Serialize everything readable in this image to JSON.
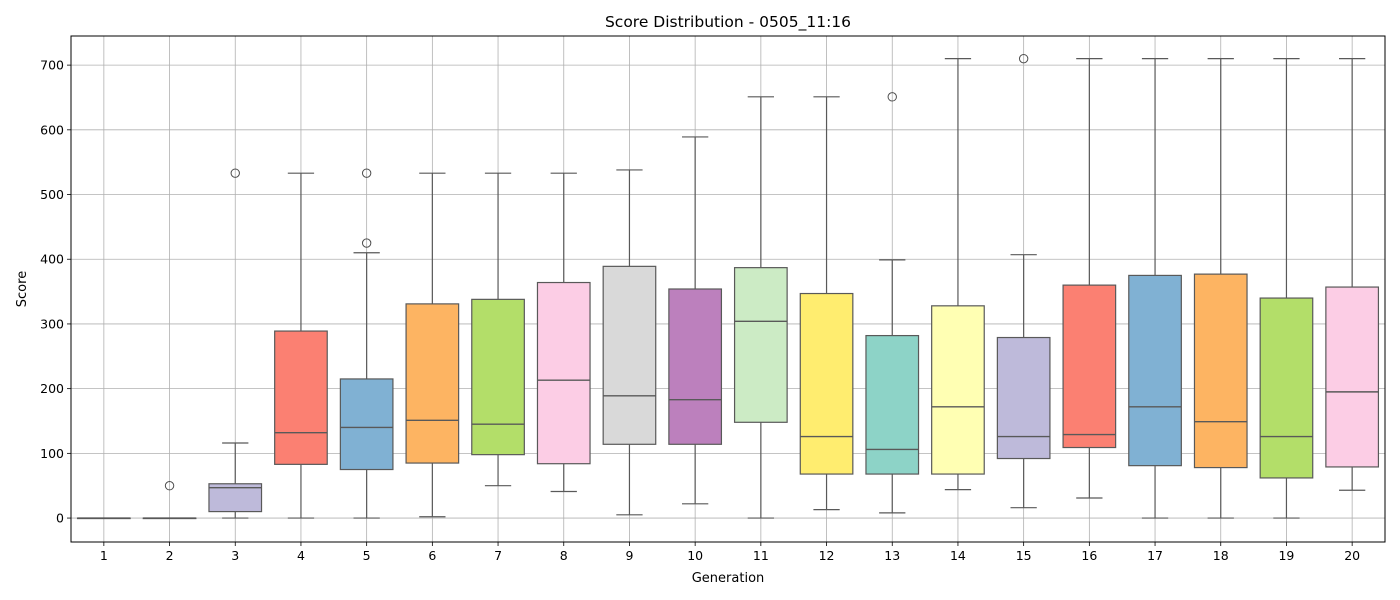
{
  "chart_data": {
    "type": "box",
    "title": "Score Distribution - 0505_11:16",
    "xlabel": "Generation",
    "ylabel": "Score",
    "ylim": [
      -37,
      745
    ],
    "yticks": [
      0,
      100,
      200,
      300,
      400,
      500,
      600,
      700
    ],
    "grid": true,
    "categories": [
      "1",
      "2",
      "3",
      "4",
      "5",
      "6",
      "7",
      "8",
      "9",
      "10",
      "11",
      "12",
      "13",
      "14",
      "15",
      "16",
      "17",
      "18",
      "19",
      "20"
    ],
    "boxes": [
      {
        "gen": "1",
        "whisker_low": 0,
        "q1": 0,
        "median": 0,
        "q3": 0,
        "whisker_high": 0,
        "outliers": [],
        "color": "#8dd3c7"
      },
      {
        "gen": "2",
        "whisker_low": 0,
        "q1": 0,
        "median": 0,
        "q3": 0,
        "whisker_high": 0,
        "outliers": [
          50
        ],
        "color": "#ffffb3"
      },
      {
        "gen": "3",
        "whisker_low": 0,
        "q1": 10,
        "median": 47,
        "q3": 53,
        "whisker_high": 116,
        "outliers": [
          533
        ],
        "color": "#bebada"
      },
      {
        "gen": "4",
        "whisker_low": 0,
        "q1": 83,
        "median": 132,
        "q3": 289,
        "whisker_high": 533,
        "outliers": [],
        "color": "#fb8072"
      },
      {
        "gen": "5",
        "whisker_low": 0,
        "q1": 75,
        "median": 140,
        "q3": 215,
        "whisker_high": 410,
        "outliers": [
          425,
          533
        ],
        "color": "#80b1d3"
      },
      {
        "gen": "6",
        "whisker_low": 2,
        "q1": 85,
        "median": 151,
        "q3": 331,
        "whisker_high": 533,
        "outliers": [],
        "color": "#fdb462"
      },
      {
        "gen": "7",
        "whisker_low": 50,
        "q1": 98,
        "median": 145,
        "q3": 338,
        "whisker_high": 533,
        "outliers": [],
        "color": "#b3de69"
      },
      {
        "gen": "8",
        "whisker_low": 41,
        "q1": 84,
        "median": 213,
        "q3": 364,
        "whisker_high": 533,
        "outliers": [],
        "color": "#fccde5"
      },
      {
        "gen": "9",
        "whisker_low": 5,
        "q1": 114,
        "median": 189,
        "q3": 389,
        "whisker_high": 538,
        "outliers": [],
        "color": "#d9d9d9"
      },
      {
        "gen": "10",
        "whisker_low": 22,
        "q1": 114,
        "median": 183,
        "q3": 354,
        "whisker_high": 589,
        "outliers": [],
        "color": "#bc80bd"
      },
      {
        "gen": "11",
        "whisker_low": 0,
        "q1": 148,
        "median": 304,
        "q3": 387,
        "whisker_high": 651,
        "outliers": [],
        "color": "#ccebc5"
      },
      {
        "gen": "12",
        "whisker_low": 13,
        "q1": 68,
        "median": 126,
        "q3": 347,
        "whisker_high": 651,
        "outliers": [],
        "color": "#ffed6f"
      },
      {
        "gen": "13",
        "whisker_low": 8,
        "q1": 68,
        "median": 106,
        "q3": 282,
        "whisker_high": 399,
        "outliers": [
          651
        ],
        "color": "#8dd3c7"
      },
      {
        "gen": "14",
        "whisker_low": 44,
        "q1": 68,
        "median": 172,
        "q3": 328,
        "whisker_high": 710,
        "outliers": [],
        "color": "#ffffb3"
      },
      {
        "gen": "15",
        "whisker_low": 16,
        "q1": 92,
        "median": 126,
        "q3": 279,
        "whisker_high": 407,
        "outliers": [
          710
        ],
        "color": "#bebada"
      },
      {
        "gen": "16",
        "whisker_low": 31,
        "q1": 109,
        "median": 129,
        "q3": 360,
        "whisker_high": 710,
        "outliers": [],
        "color": "#fb8072"
      },
      {
        "gen": "17",
        "whisker_low": 0,
        "q1": 81,
        "median": 172,
        "q3": 375,
        "whisker_high": 710,
        "outliers": [],
        "color": "#80b1d3"
      },
      {
        "gen": "18",
        "whisker_low": 0,
        "q1": 78,
        "median": 149,
        "q3": 377,
        "whisker_high": 710,
        "outliers": [],
        "color": "#fdb462"
      },
      {
        "gen": "19",
        "whisker_low": 0,
        "q1": 62,
        "median": 126,
        "q3": 340,
        "whisker_high": 710,
        "outliers": [],
        "color": "#b3de69"
      },
      {
        "gen": "20",
        "whisker_low": 43,
        "q1": 79,
        "median": 195,
        "q3": 357,
        "whisker_high": 710,
        "outliers": [],
        "color": "#fccde5"
      }
    ]
  }
}
